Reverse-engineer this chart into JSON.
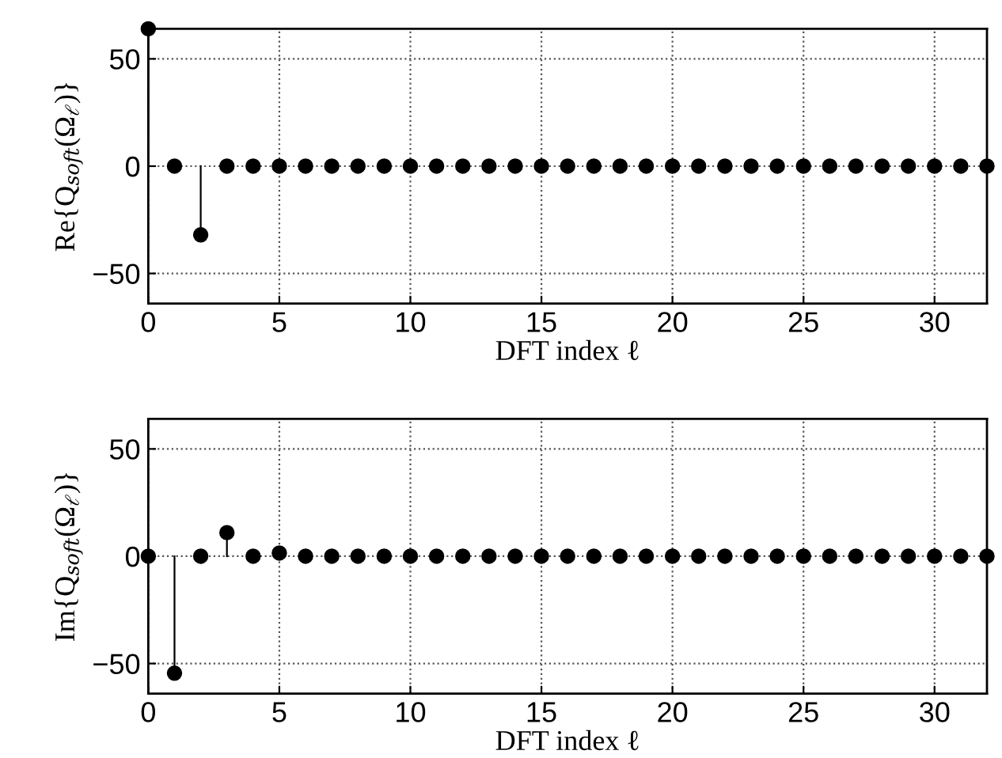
{
  "chart_data": [
    {
      "type": "lollipop",
      "x": [
        0,
        1,
        2,
        3,
        4,
        5,
        6,
        7,
        8,
        9,
        10,
        11,
        12,
        13,
        14,
        15,
        16,
        17,
        18,
        19,
        20,
        21,
        22,
        23,
        24,
        25,
        26,
        27,
        28,
        29,
        30,
        31,
        32
      ],
      "series": [
        {
          "color": "#000000",
          "values": [
            64,
            0,
            -32,
            0,
            0,
            0,
            0,
            0,
            0,
            0,
            0,
            0,
            0,
            0,
            0,
            0,
            0,
            0,
            0,
            0,
            0,
            0,
            0,
            0,
            0,
            0,
            0,
            0,
            0,
            0,
            0,
            0,
            0
          ]
        }
      ],
      "xlabel": "DFT index ℓ",
      "ylabel": "Re{Q$_{soft}$(Ω$_{ℓ}$)}",
      "xlim": [
        0,
        32
      ],
      "ylim": [
        -64,
        64
      ],
      "xticks": [
        0,
        5,
        10,
        15,
        20,
        25,
        30
      ],
      "yticks": [
        -50,
        0,
        50
      ],
      "grid": true,
      "marker": "circle"
    },
    {
      "type": "lollipop",
      "x": [
        0,
        1,
        2,
        3,
        4,
        5,
        6,
        7,
        8,
        9,
        10,
        11,
        12,
        13,
        14,
        15,
        16,
        17,
        18,
        19,
        20,
        21,
        22,
        23,
        24,
        25,
        26,
        27,
        28,
        29,
        30,
        31,
        32
      ],
      "series": [
        {
          "color": "#000000",
          "values": [
            0,
            -54.5,
            0,
            11,
            0,
            1.5,
            0,
            0,
            0,
            0,
            0,
            0,
            0,
            0,
            0,
            0,
            0,
            0,
            0,
            0,
            0,
            0,
            0,
            0,
            0,
            0,
            0,
            0,
            0,
            0,
            0,
            0,
            0
          ]
        }
      ],
      "xlabel": "DFT index ℓ",
      "ylabel": "Im{Q$_{soft}$(Ω$_{ℓ}$)}",
      "xlim": [
        0,
        32
      ],
      "ylim": [
        -64,
        64
      ],
      "xticks": [
        0,
        5,
        10,
        15,
        20,
        25,
        30
      ],
      "yticks": [
        -50,
        0,
        50
      ],
      "grid": true,
      "marker": "circle"
    }
  ]
}
